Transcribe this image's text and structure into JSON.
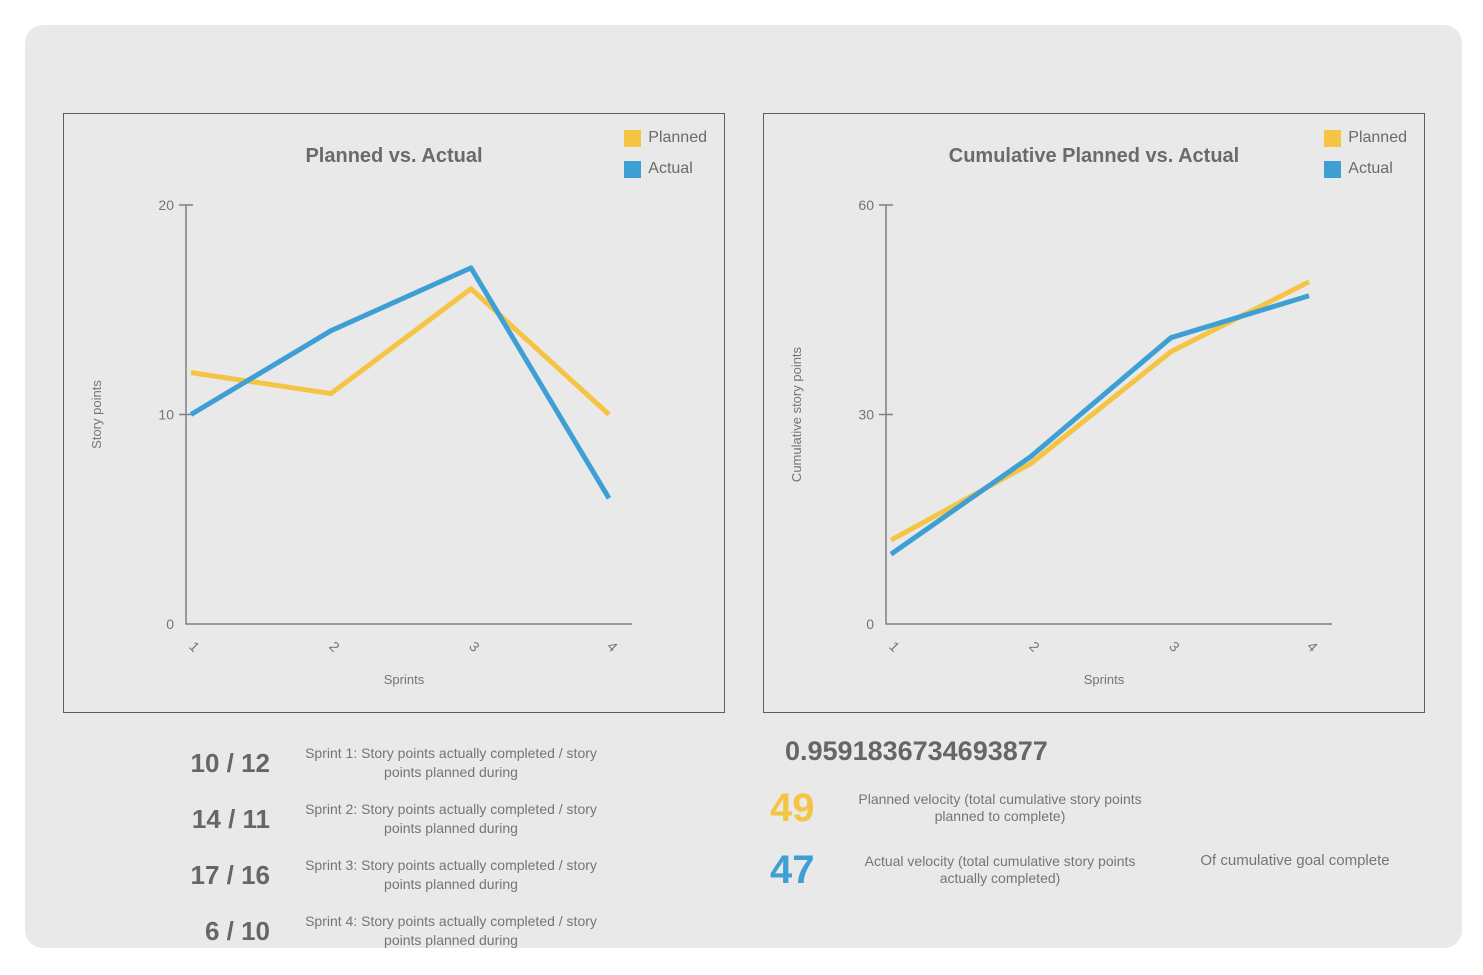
{
  "accent_colors": {
    "planned": "#F6C444",
    "actual": "#3E9FD5"
  },
  "chart_data": [
    {
      "type": "line",
      "title": "Planned vs. Actual",
      "xlabel": "Sprints",
      "ylabel": "Story points",
      "categories": [
        "1",
        "2",
        "3",
        "4"
      ],
      "ylim": [
        0,
        20
      ],
      "yticks": [
        0,
        10,
        20
      ],
      "grid": false,
      "legend_position": "top-right",
      "series": [
        {
          "name": "Planned",
          "color": "#F6C444",
          "values": [
            12,
            11,
            16,
            10
          ]
        },
        {
          "name": "Actual",
          "color": "#3E9FD5",
          "values": [
            10,
            14,
            17,
            6
          ]
        }
      ]
    },
    {
      "type": "line",
      "title": "Cumulative Planned vs. Actual",
      "xlabel": "Sprints",
      "ylabel": "Cumulative story points",
      "categories": [
        "1",
        "2",
        "3",
        "4"
      ],
      "ylim": [
        0,
        60
      ],
      "yticks": [
        0,
        30,
        60
      ],
      "grid": false,
      "legend_position": "top-right",
      "series": [
        {
          "name": "Planned",
          "color": "#F6C444",
          "values": [
            12,
            23,
            39,
            49
          ]
        },
        {
          "name": "Actual",
          "color": "#3E9FD5",
          "values": [
            10,
            24,
            41,
            47
          ]
        }
      ]
    }
  ],
  "sprint_stats": {
    "rows": [
      {
        "value": "10 / 12",
        "label": "Sprint 1: Story points actually completed / story points planned during"
      },
      {
        "value": "14 / 11",
        "label": "Sprint 2: Story points actually completed / story points planned during"
      },
      {
        "value": "17 / 16",
        "label": "Sprint 3: Story points actually completed / story points planned during"
      },
      {
        "value": "6 / 10",
        "label": "Sprint 4: Story points actually completed / story points planned during"
      }
    ]
  },
  "velocity_stats": {
    "ratio": "0.9591836734693877",
    "ratio_note": "Of cumulative goal complete",
    "rows": [
      {
        "value": "49",
        "color": "#F6C444",
        "label": "Planned velocity (total cumulative story points planned to complete)"
      },
      {
        "value": "47",
        "color": "#3E9FD5",
        "label": "Actual velocity (total cumulative story points actually completed)"
      }
    ]
  }
}
